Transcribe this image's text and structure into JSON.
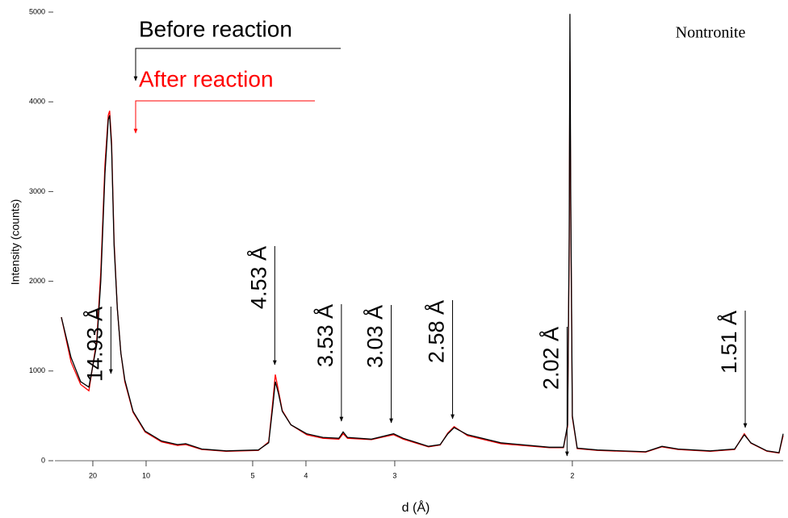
{
  "chart_data": {
    "type": "line",
    "label": "Nontronite",
    "xlabel": "d (Å)",
    "ylabel": "Intensity (counts)",
    "xscale": "reciprocal",
    "xlim": [
      69.4,
      1.433
    ],
    "xticks": [
      20,
      10,
      5,
      4,
      3,
      2
    ],
    "ylim": [
      0,
      5000
    ],
    "yticks": [
      0,
      1000,
      2000,
      3000,
      4000,
      5000
    ],
    "x": [
      48.9,
      33.8,
      25.9,
      21.6,
      18.6,
      17.4,
      16.3,
      15.5,
      15.2,
      14.8,
      14.3,
      13.7,
      13.1,
      12.5,
      11.4,
      10.1,
      8.74,
      7.72,
      7.29,
      6.57,
      5.71,
      4.87,
      4.65,
      4.57,
      4.52,
      4.46,
      4.39,
      4.24,
      3.99,
      3.76,
      3.56,
      3.51,
      3.46,
      3.21,
      3.01,
      2.93,
      2.74,
      2.66,
      2.61,
      2.57,
      2.49,
      2.31,
      2.09,
      2.034,
      2.018,
      2.012,
      2.009,
      2.006,
      2.0,
      1.982,
      1.91,
      1.758,
      1.712,
      1.669,
      1.589,
      1.533,
      1.512,
      1.498,
      1.465,
      1.441,
      1.433
    ],
    "series": [
      {
        "name": "After reaction",
        "color": "#ff0000",
        "values": [
          1600,
          1100,
          850,
          780,
          1350,
          2100,
          3300,
          3850,
          3900,
          3550,
          2450,
          1700,
          1200,
          880,
          540,
          320,
          210,
          170,
          180,
          125,
          105,
          115,
          210,
          650,
          960,
          780,
          560,
          400,
          290,
          250,
          240,
          300,
          250,
          235,
          290,
          240,
          155,
          175,
          310,
          380,
          280,
          190,
          145,
          145,
          380,
          2300,
          4450,
          2800,
          480,
          135,
          115,
          95,
          155,
          125,
          105,
          125,
          300,
          195,
          105,
          85,
          280
        ]
      },
      {
        "name": "Before reaction",
        "color": "#000000",
        "values": [
          1600,
          1150,
          880,
          820,
          1300,
          2000,
          3200,
          3800,
          3850,
          3500,
          2400,
          1700,
          1200,
          900,
          550,
          330,
          220,
          180,
          190,
          130,
          110,
          120,
          200,
          600,
          880,
          750,
          550,
          400,
          300,
          260,
          250,
          320,
          260,
          240,
          300,
          250,
          160,
          180,
          300,
          370,
          290,
          200,
          150,
          150,
          400,
          2500,
          4980,
          3000,
          500,
          140,
          120,
          100,
          160,
          130,
          110,
          130,
          290,
          200,
          110,
          90,
          300
        ]
      }
    ],
    "annotations": [
      {
        "text": "14.93 Å",
        "x": 14.93
      },
      {
        "text": "4.53 Å",
        "x": 4.53
      },
      {
        "text": "3.53 Å",
        "x": 3.53
      },
      {
        "text": "3.03 Å",
        "x": 3.03
      },
      {
        "text": "2.58 Å",
        "x": 2.58
      },
      {
        "text": "2.02 Å",
        "x": 2.02
      },
      {
        "text": "1.51 Å",
        "x": 1.51
      }
    ]
  }
}
